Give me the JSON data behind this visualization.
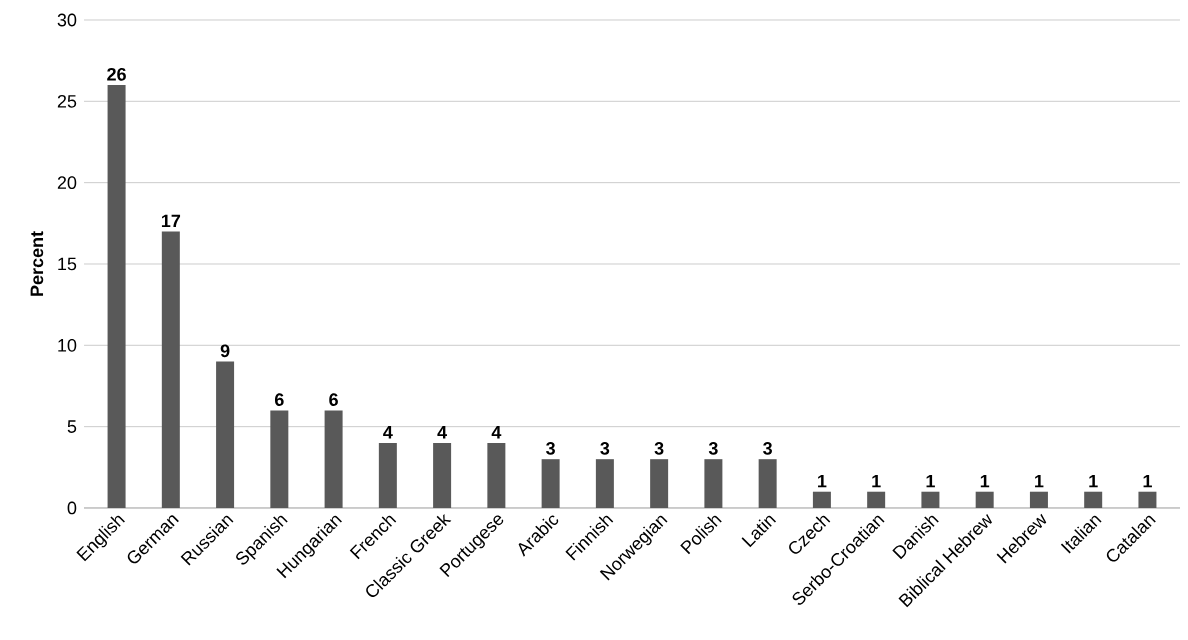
{
  "chart_data": {
    "type": "bar",
    "ylabel": "Percent",
    "categories": [
      "English",
      "German",
      "Russian",
      "Spanish",
      "Hungarian",
      "French",
      "Classic Greek",
      "Portugese",
      "Arabic",
      "Finnish",
      "Norwegian",
      "Polish",
      "Latin",
      "Czech",
      "Serbo-Croatian",
      "Danish",
      "Biblical Hebrew",
      "Hebrew",
      "Italian",
      "Catalan"
    ],
    "values": [
      26,
      17,
      9,
      6,
      6,
      4,
      4,
      4,
      3,
      3,
      3,
      3,
      3,
      1,
      1,
      1,
      1,
      1,
      1,
      1
    ],
    "color": "#595959",
    "ylim": [
      0,
      30
    ],
    "yticks": [
      0,
      5,
      10,
      15,
      20,
      25,
      30
    ],
    "grid": "y",
    "data_labels": true
  }
}
